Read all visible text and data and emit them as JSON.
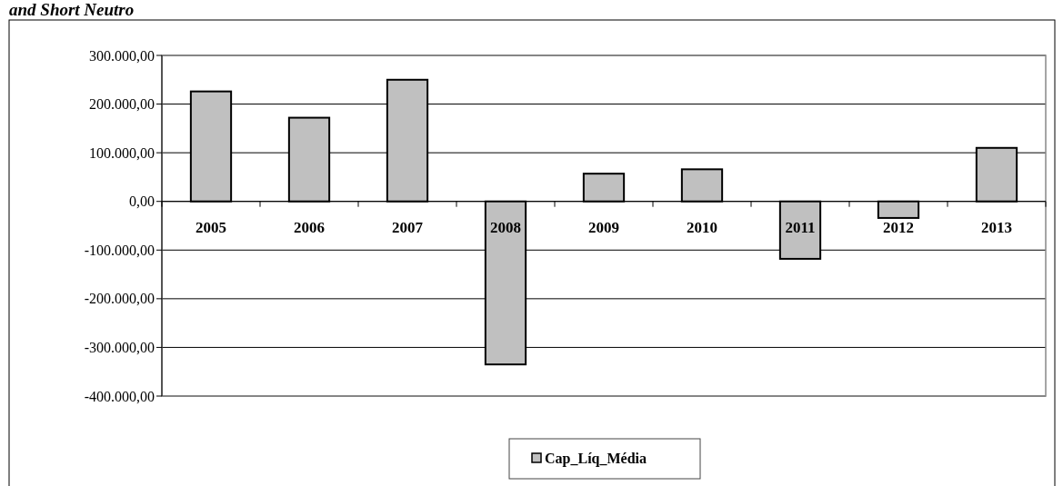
{
  "chart_data": {
    "type": "bar",
    "title": "and Short Neutro",
    "categories": [
      "2005",
      "2006",
      "2007",
      "2008",
      "2009",
      "2010",
      "2011",
      "2012",
      "2013"
    ],
    "series": [
      {
        "name": "Cap_Líq_Média",
        "color": "#c0c0c0",
        "values": [
          226000,
          172000,
          250000,
          -335000,
          57000,
          66000,
          -118000,
          -34000,
          110000
        ]
      }
    ],
    "ylim": [
      -400000,
      300000
    ],
    "yticks": [
      {
        "value": -400000,
        "label": "-400.000,00"
      },
      {
        "value": -300000,
        "label": "-300.000,00"
      },
      {
        "value": -200000,
        "label": "-200.000,00"
      },
      {
        "value": -100000,
        "label": "-100.000,00"
      },
      {
        "value": 0,
        "label": "0,00"
      },
      {
        "value": 100000,
        "label": "100.000,00"
      },
      {
        "value": 200000,
        "label": "200.000,00"
      },
      {
        "value": 300000,
        "label": "300.000,00"
      }
    ],
    "grid": "y",
    "legend": "bottom"
  }
}
